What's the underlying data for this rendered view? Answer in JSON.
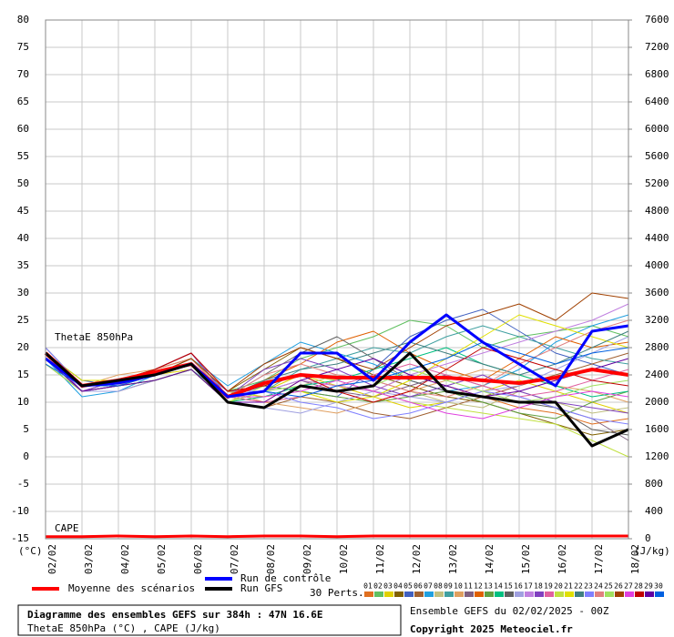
{
  "chart_data": {
    "type": "line",
    "title": "Diagramme des ensembles GEFS sur 384h : 47N 16.6E",
    "subtitle": "ThetaE 850hPa (°C) , CAPE (J/kg)",
    "y_label": "(°C)",
    "y2_label": "(J/kg)",
    "plot_label": "ThetaE 850hPa",
    "run_info": "Ensemble GEFS du 02/02/2025 - 00Z",
    "copyright": "Copyright 2025 Meteociel.fr",
    "perturbations_label": "30 Perts.",
    "grid": true,
    "x": [
      "02/02",
      "03/02",
      "04/02",
      "05/02",
      "06/02",
      "07/02",
      "08/02",
      "09/02",
      "10/02",
      "11/02",
      "12/02",
      "13/02",
      "14/02",
      "15/02",
      "16/02",
      "17/02",
      "18/02"
    ],
    "ylim": [
      -15,
      80
    ],
    "yticks": [
      -15,
      -10,
      -5,
      0,
      5,
      10,
      15,
      20,
      25,
      30,
      35,
      40,
      45,
      50,
      55,
      60,
      65,
      70,
      75,
      80
    ],
    "y2lim": [
      0,
      7600
    ],
    "y2ticks": [
      0,
      400,
      800,
      1200,
      1600,
      2000,
      2400,
      2800,
      3200,
      3600,
      4000,
      4400,
      4800,
      5200,
      5600,
      6000,
      6400,
      6800,
      7200,
      7600
    ],
    "cape": {
      "label": "CAPE",
      "axis": "y2",
      "color": "#ff0000",
      "values": [
        30,
        30,
        40,
        30,
        40,
        30,
        40,
        40,
        30,
        40,
        40,
        40,
        40,
        40,
        40,
        40,
        40
      ]
    },
    "series": [
      {
        "name": "Moyenne des scénarios",
        "color": "#ff0000",
        "width": 4,
        "values": [
          19,
          13,
          14,
          15.5,
          17,
          11,
          13.5,
          15,
          14.5,
          14.5,
          14.5,
          14.5,
          14,
          13.5,
          14.5,
          16,
          15
        ]
      },
      {
        "name": "Run de contrôle",
        "color": "#0000ff",
        "width": 3,
        "values": [
          18,
          13,
          13.5,
          15,
          17,
          11,
          12,
          19,
          19,
          14,
          21,
          26,
          21,
          17,
          13,
          23,
          24
        ]
      },
      {
        "name": "Run GFS",
        "color": "#000000",
        "width": 3,
        "values": [
          19,
          13,
          14,
          15,
          17,
          10,
          9,
          13,
          12,
          13,
          19,
          12,
          11,
          10,
          10,
          2,
          5
        ]
      },
      {
        "name": "01",
        "color": "#e07020",
        "width": 1,
        "values": [
          18,
          12,
          13,
          15,
          17,
          11,
          10,
          14,
          13,
          12,
          15,
          13,
          11,
          9,
          8,
          6,
          7
        ]
      },
      {
        "name": "02",
        "color": "#60c060",
        "width": 1,
        "values": [
          19,
          13,
          14,
          16,
          18,
          12,
          14,
          18,
          20,
          22,
          25,
          24,
          20,
          22,
          23,
          24,
          22
        ]
      },
      {
        "name": "03",
        "color": "#e0d000",
        "width": 1,
        "values": [
          17,
          12,
          13,
          15,
          16,
          10,
          12,
          15,
          13,
          11,
          9,
          10,
          12,
          14,
          12,
          10,
          8
        ]
      },
      {
        "name": "04",
        "color": "#806000",
        "width": 1,
        "values": [
          18,
          13,
          14,
          15,
          17,
          12,
          16,
          20,
          18,
          15,
          13,
          11,
          10,
          8,
          6,
          4,
          5
        ]
      },
      {
        "name": "05",
        "color": "#4060c0",
        "width": 1,
        "values": [
          19,
          14,
          13,
          16,
          19,
          11,
          13,
          12,
          11,
          16,
          22,
          25,
          27,
          23,
          19,
          17,
          15
        ]
      },
      {
        "name": "06",
        "color": "#a06030",
        "width": 1,
        "values": [
          17,
          12,
          12,
          14,
          16,
          10,
          9,
          11,
          10,
          8,
          7,
          9,
          11,
          13,
          15,
          17,
          19
        ]
      },
      {
        "name": "07",
        "color": "#20a0e0",
        "width": 1,
        "values": [
          18,
          11,
          12,
          15,
          18,
          13,
          17,
          21,
          19,
          17,
          14,
          12,
          13,
          16,
          21,
          24,
          26
        ]
      },
      {
        "name": "08",
        "color": "#c0c080",
        "width": 1,
        "values": [
          20,
          13,
          14,
          15,
          17,
          12,
          11,
          13,
          15,
          14,
          12,
          10,
          9,
          12,
          10,
          8,
          9
        ]
      },
      {
        "name": "09",
        "color": "#40a0a0",
        "width": 1,
        "values": [
          18,
          12,
          13,
          14,
          16,
          11,
          12,
          16,
          18,
          20,
          19,
          22,
          24,
          22,
          20,
          18,
          17
        ]
      },
      {
        "name": "10",
        "color": "#e0a060",
        "width": 1,
        "values": [
          19,
          13,
          15,
          16,
          18,
          12,
          10,
          9,
          8,
          10,
          12,
          14,
          16,
          15,
          13,
          12,
          10
        ]
      },
      {
        "name": "11",
        "color": "#806080",
        "width": 1,
        "values": [
          17,
          12,
          14,
          15,
          17,
          10,
          12,
          14,
          12,
          11,
          13,
          15,
          13,
          11,
          9,
          7,
          3
        ]
      },
      {
        "name": "12",
        "color": "#e06000",
        "width": 1,
        "values": [
          18,
          13,
          13,
          16,
          19,
          11,
          14,
          17,
          21,
          23,
          19,
          16,
          14,
          18,
          22,
          20,
          21
        ]
      },
      {
        "name": "13",
        "color": "#60a040",
        "width": 1,
        "values": [
          19,
          14,
          14,
          15,
          17,
          12,
          13,
          12,
          11,
          10,
          11,
          12,
          10,
          8,
          7,
          10,
          12
        ]
      },
      {
        "name": "14",
        "color": "#00c080",
        "width": 1,
        "values": [
          18,
          12,
          13,
          14,
          16,
          10,
          11,
          13,
          14,
          16,
          18,
          20,
          17,
          15,
          13,
          11,
          12
        ]
      },
      {
        "name": "15",
        "color": "#606060",
        "width": 1,
        "values": [
          20,
          13,
          14,
          15,
          18,
          11,
          15,
          19,
          22,
          18,
          14,
          12,
          11,
          10,
          9,
          5,
          4
        ]
      },
      {
        "name": "16",
        "color": "#a0a0e0",
        "width": 1,
        "values": [
          17,
          12,
          12,
          14,
          16,
          10,
          9,
          8,
          10,
          12,
          11,
          10,
          12,
          13,
          16,
          19,
          22
        ]
      },
      {
        "name": "17",
        "color": "#c080e0",
        "width": 1,
        "values": [
          18,
          13,
          13,
          15,
          17,
          12,
          12,
          14,
          13,
          12,
          15,
          17,
          19,
          21,
          23,
          25,
          28
        ]
      },
      {
        "name": "18",
        "color": "#8040c0",
        "width": 1,
        "values": [
          19,
          12,
          14,
          16,
          19,
          11,
          16,
          18,
          16,
          13,
          11,
          13,
          15,
          12,
          10,
          9,
          8
        ]
      },
      {
        "name": "19",
        "color": "#e060a0",
        "width": 1,
        "values": [
          18,
          13,
          13,
          15,
          17,
          11,
          10,
          11,
          13,
          15,
          17,
          15,
          13,
          11,
          12,
          14,
          16
        ]
      },
      {
        "name": "20",
        "color": "#c0e040",
        "width": 1,
        "values": [
          17,
          12,
          13,
          14,
          16,
          10,
          13,
          15,
          14,
          12,
          10,
          9,
          8,
          7,
          6,
          3,
          0
        ]
      },
      {
        "name": "21",
        "color": "#e0e000",
        "width": 1,
        "values": [
          19,
          14,
          14,
          16,
          18,
          12,
          11,
          12,
          10,
          11,
          14,
          18,
          22,
          26,
          24,
          22,
          20
        ]
      },
      {
        "name": "22",
        "color": "#408080",
        "width": 1,
        "values": [
          18,
          12,
          13,
          15,
          17,
          11,
          14,
          16,
          17,
          19,
          21,
          19,
          17,
          15,
          17,
          20,
          23
        ]
      },
      {
        "name": "23",
        "color": "#8080ff",
        "width": 1,
        "values": [
          20,
          13,
          14,
          15,
          17,
          12,
          12,
          10,
          9,
          7,
          8,
          10,
          12,
          11,
          9,
          7,
          6
        ]
      },
      {
        "name": "24",
        "color": "#e08080",
        "width": 1,
        "values": [
          18,
          13,
          13,
          16,
          18,
          11,
          15,
          17,
          15,
          14,
          12,
          11,
          13,
          17,
          20,
          23,
          25
        ]
      },
      {
        "name": "25",
        "color": "#a0e060",
        "width": 1,
        "values": [
          17,
          12,
          13,
          14,
          16,
          10,
          12,
          13,
          12,
          13,
          16,
          14,
          12,
          10,
          11,
          13,
          14
        ]
      },
      {
        "name": "26",
        "color": "#a04000",
        "width": 1,
        "values": [
          19,
          13,
          14,
          15,
          18,
          12,
          17,
          20,
          18,
          16,
          20,
          24,
          26,
          28,
          25,
          30,
          29
        ]
      },
      {
        "name": "27",
        "color": "#e040e0",
        "width": 1,
        "values": [
          18,
          12,
          13,
          15,
          17,
          11,
          11,
          12,
          14,
          12,
          10,
          8,
          7,
          9,
          11,
          12,
          11
        ]
      },
      {
        "name": "28",
        "color": "#c00000",
        "width": 1,
        "values": [
          19,
          13,
          14,
          16,
          19,
          12,
          13,
          15,
          12,
          10,
          12,
          16,
          20,
          18,
          16,
          14,
          13
        ]
      },
      {
        "name": "29",
        "color": "#6000a0",
        "width": 1,
        "values": [
          18,
          12,
          13,
          14,
          16,
          10,
          10,
          14,
          16,
          18,
          15,
          13,
          11,
          12,
          14,
          16,
          18
        ]
      },
      {
        "name": "30",
        "color": "#0060e0",
        "width": 1,
        "values": [
          17,
          13,
          13,
          15,
          17,
          11,
          12,
          11,
          13,
          14,
          16,
          18,
          21,
          19,
          17,
          19,
          20
        ]
      }
    ]
  }
}
